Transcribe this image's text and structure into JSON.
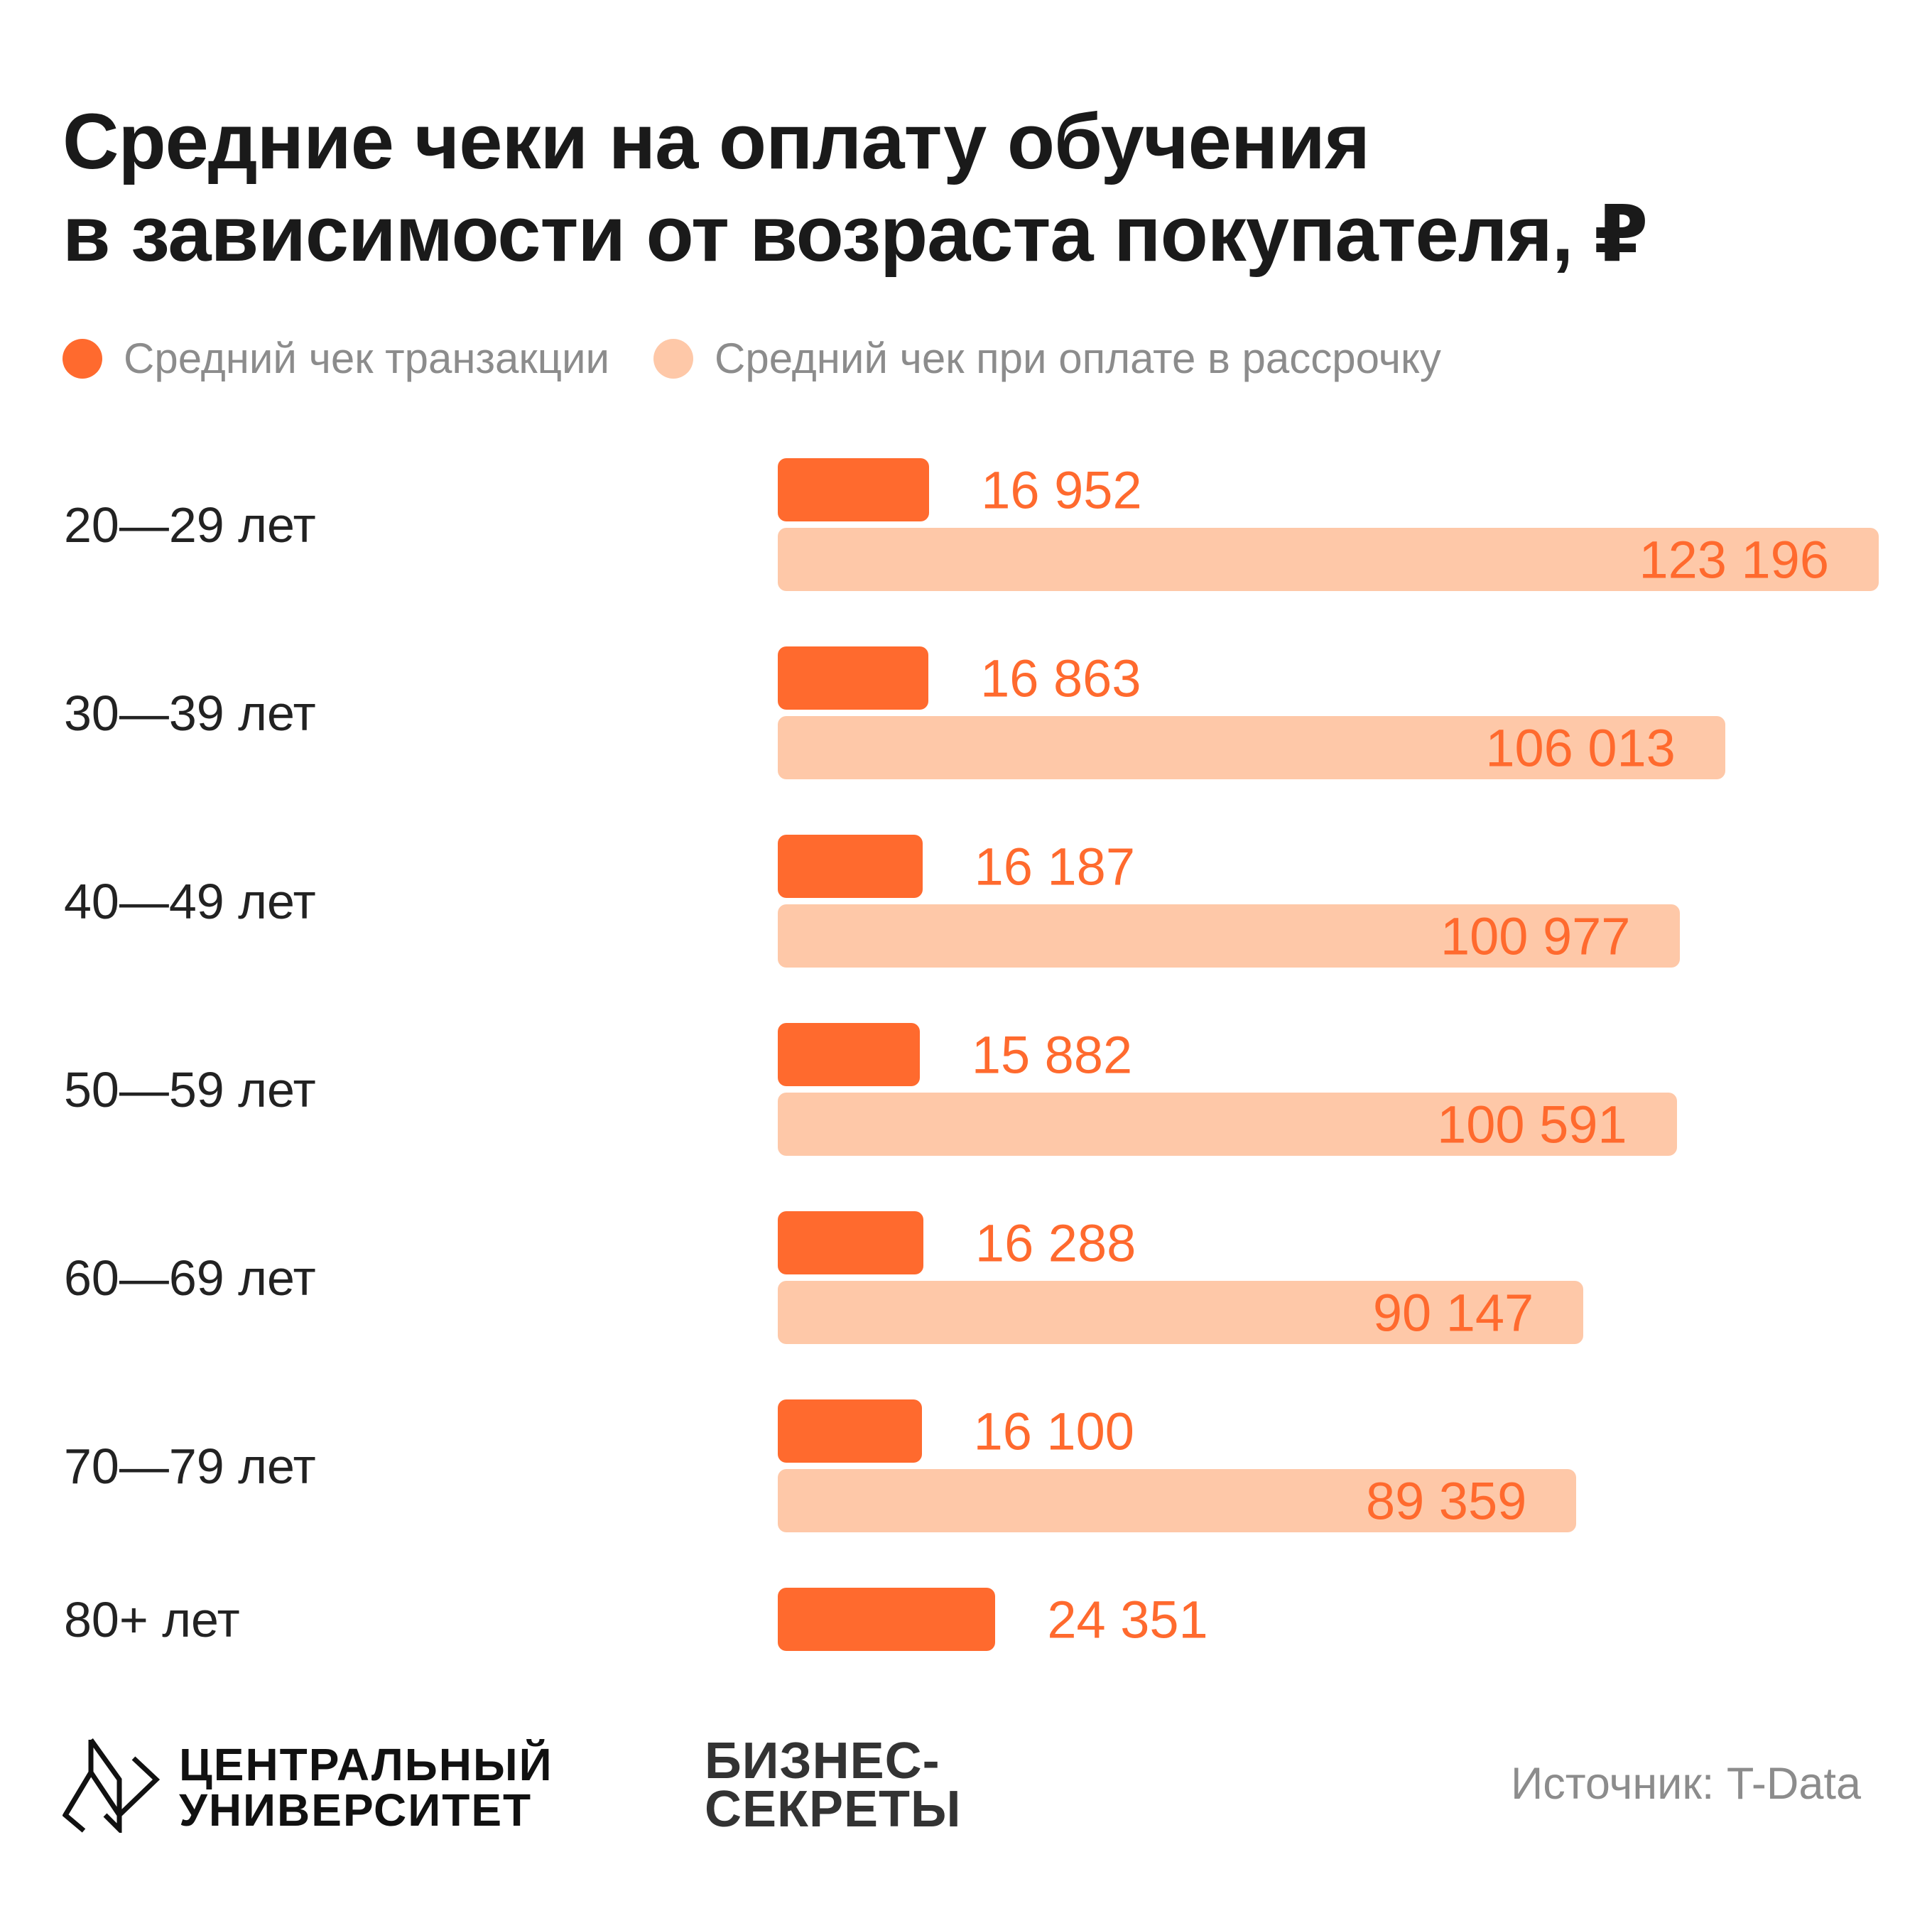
{
  "title": [
    "Средние чеки на оплату обучения",
    "в зависимости от возраста покупателя, ₽"
  ],
  "chart_data": {
    "type": "bar",
    "orientation": "horizontal",
    "title": "Средние чеки на оплату обучения в зависимости от возраста покупателя, ₽",
    "categories": [
      "20—29 лет",
      "30—39 лет",
      "40—49 лет",
      "50—59 лет",
      "60—69 лет",
      "70—79 лет",
      "80+ лет"
    ],
    "series": [
      {
        "name": "Средний чек транзакции",
        "color": "#ff6a2e",
        "values": [
          16952,
          16863,
          16187,
          15882,
          16288,
          16100,
          24351
        ],
        "labels": [
          "16 952",
          "16 863",
          "16 187",
          "15 882",
          "16 288",
          "16 100",
          "24 351"
        ]
      },
      {
        "name": "Средний чек при оплате в рассрочку",
        "color": "#fec8a8",
        "values": [
          123196,
          106013,
          100977,
          100591,
          90147,
          89359,
          null
        ],
        "labels": [
          "123 196",
          "106 013",
          "100 977",
          "100 591",
          "90 147",
          "89 359",
          null
        ]
      }
    ],
    "xlim": [
      0,
      123196
    ],
    "grid": false,
    "legend_position": "top-left"
  },
  "footer": {
    "logo1": [
      "ЦЕНТРАЛЬНЫЙ",
      "УНИВЕРСИТЕТ"
    ],
    "logo2": [
      "БИЗНЕС-",
      "СЕКРЕТЫ"
    ],
    "source": "Источник: T-Data"
  }
}
